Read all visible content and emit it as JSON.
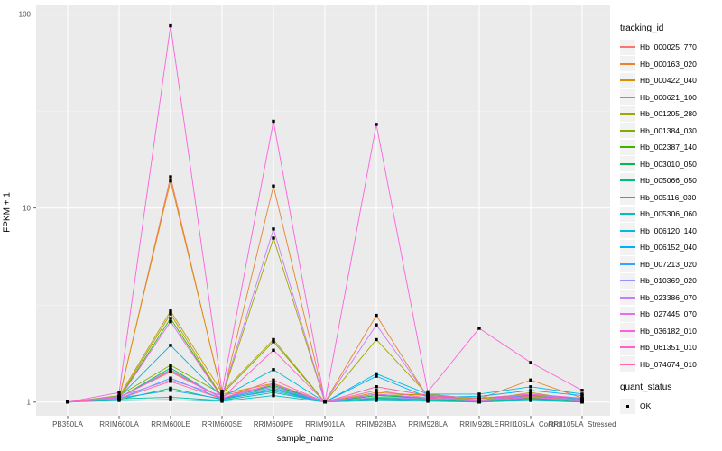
{
  "figure": {
    "xlabel": "sample_name",
    "ylabel": "FPKM + 1"
  },
  "legend": {
    "tracking_title": "tracking_id",
    "quant_title": "quant_status",
    "quant_items": [
      {
        "label": "OK",
        "marker": "black-square-point"
      }
    ]
  },
  "colors": {
    "page_bg": "#FFFFFF",
    "panel_bg": "#EBEBEB",
    "grid_major": "#FFFFFF",
    "grid_minor": "#F5F5F5",
    "tick_mark": "#333333",
    "tick_label": "#4D4D4D",
    "axis_title": "#000000",
    "point": "#000000",
    "legend_key_bg": "#F2F2F2"
  },
  "chart_data": {
    "type": "line",
    "title": "",
    "xlabel": "sample_name",
    "ylabel": "FPKM + 1",
    "yscale": "log10",
    "ylim": [
      0.85,
      112
    ],
    "y_major_ticks": [
      1,
      10,
      100
    ],
    "y_minor_ticks": [
      3.162,
      31.62
    ],
    "grid": true,
    "legend_position": "right",
    "point_marker": "small-black-square",
    "x": [
      "PB350LA",
      "RRIM600LA",
      "RRIM600LE",
      "RRIM600SE",
      "RRIM600PE",
      "RRIM901LA",
      "RRIM928BA",
      "RRIM928LA",
      "RRIM928LE",
      "RRII105LA_Control",
      "RRII105LA_Stressed"
    ],
    "series": [
      {
        "name": "Hb_000025_770",
        "color": "#F8766D",
        "values": [
          1.0,
          1.04,
          14.5,
          1.08,
          1.22,
          1.0,
          1.06,
          1.05,
          1.02,
          1.08,
          1.02
        ]
      },
      {
        "name": "Hb_000163_020",
        "color": "#EA8331",
        "values": [
          1.0,
          1.06,
          1.45,
          1.05,
          13.0,
          1.0,
          2.8,
          1.06,
          1.04,
          1.3,
          1.05
        ]
      },
      {
        "name": "Hb_000422_040",
        "color": "#D89000",
        "values": [
          1.0,
          1.05,
          13.8,
          1.1,
          1.25,
          1.0,
          1.12,
          1.08,
          1.02,
          1.06,
          1.02
        ]
      },
      {
        "name": "Hb_000621_100",
        "color": "#C09B00",
        "values": [
          1.0,
          1.07,
          2.95,
          1.12,
          2.1,
          1.0,
          1.08,
          1.1,
          1.04,
          1.1,
          1.04
        ]
      },
      {
        "name": "Hb_001205_280",
        "color": "#A3A500",
        "values": [
          1.0,
          1.05,
          2.85,
          1.06,
          7.0,
          1.0,
          2.1,
          1.09,
          1.02,
          1.12,
          1.02
        ]
      },
      {
        "name": "Hb_001384_030",
        "color": "#7CAE00",
        "values": [
          1.0,
          1.08,
          1.55,
          1.1,
          2.05,
          1.0,
          1.2,
          1.08,
          1.05,
          1.08,
          1.03
        ]
      },
      {
        "name": "Hb_002387_140",
        "color": "#39B600",
        "values": [
          1.0,
          1.04,
          2.7,
          1.05,
          1.2,
          1.0,
          1.1,
          1.04,
          1.01,
          1.05,
          1.01
        ]
      },
      {
        "name": "Hb_003010_050",
        "color": "#00BB4E",
        "values": [
          1.0,
          1.05,
          1.5,
          1.04,
          1.22,
          1.0,
          1.08,
          1.05,
          1.01,
          1.07,
          1.02
        ]
      },
      {
        "name": "Hb_005066_050",
        "color": "#00BF7D",
        "values": [
          1.0,
          1.03,
          1.18,
          1.03,
          1.16,
          1.0,
          1.05,
          1.03,
          1.0,
          1.04,
          1.01
        ]
      },
      {
        "name": "Hb_005116_030",
        "color": "#00C1A3",
        "values": [
          1.0,
          1.04,
          1.06,
          1.02,
          1.12,
          1.0,
          1.04,
          1.02,
          1.0,
          1.03,
          1.0
        ]
      },
      {
        "name": "Hb_005306_060",
        "color": "#00BFC4",
        "values": [
          1.0,
          1.02,
          1.03,
          1.01,
          1.08,
          1.0,
          1.02,
          1.01,
          1.0,
          1.02,
          1.0
        ]
      },
      {
        "name": "Hb_006120_140",
        "color": "#00BAE0",
        "values": [
          1.0,
          1.06,
          1.96,
          1.06,
          1.47,
          1.0,
          1.4,
          1.1,
          1.1,
          1.2,
          1.1
        ]
      },
      {
        "name": "Hb_006152_040",
        "color": "#00B0F6",
        "values": [
          1.0,
          1.05,
          1.15,
          1.04,
          1.18,
          1.0,
          1.36,
          1.06,
          1.07,
          1.15,
          1.08
        ]
      },
      {
        "name": "Hb_007213_020",
        "color": "#35A2FF",
        "values": [
          1.0,
          1.04,
          1.33,
          1.04,
          1.14,
          1.0,
          1.1,
          1.05,
          1.02,
          1.09,
          1.04
        ]
      },
      {
        "name": "Hb_010369_020",
        "color": "#9590FF",
        "values": [
          1.0,
          1.05,
          1.47,
          1.05,
          1.2,
          1.0,
          1.06,
          1.04,
          1.01,
          1.06,
          1.02
        ]
      },
      {
        "name": "Hb_023386_070",
        "color": "#C77CFF",
        "values": [
          1.0,
          1.07,
          1.3,
          1.08,
          7.8,
          1.0,
          2.5,
          1.07,
          1.02,
          1.1,
          1.02
        ]
      },
      {
        "name": "Hb_027445_070",
        "color": "#E76BF3",
        "values": [
          1.0,
          1.04,
          2.6,
          1.05,
          1.24,
          1.0,
          1.1,
          1.05,
          1.01,
          1.06,
          1.01
        ]
      },
      {
        "name": "Hb_036182_010",
        "color": "#FA62DB",
        "values": [
          1.0,
          1.12,
          87.0,
          1.14,
          28.0,
          1.0,
          27.0,
          1.13,
          2.4,
          1.6,
          1.15
        ]
      },
      {
        "name": "Hb_061351_010",
        "color": "#FF61CC",
        "values": [
          1.0,
          1.06,
          1.43,
          1.05,
          1.85,
          1.0,
          1.2,
          1.08,
          1.05,
          1.1,
          1.05
        ]
      },
      {
        "name": "Hb_074674_010",
        "color": "#FF67A4",
        "values": [
          1.0,
          1.04,
          1.28,
          1.04,
          1.3,
          1.0,
          1.15,
          1.05,
          1.02,
          1.07,
          1.02
        ]
      }
    ]
  }
}
